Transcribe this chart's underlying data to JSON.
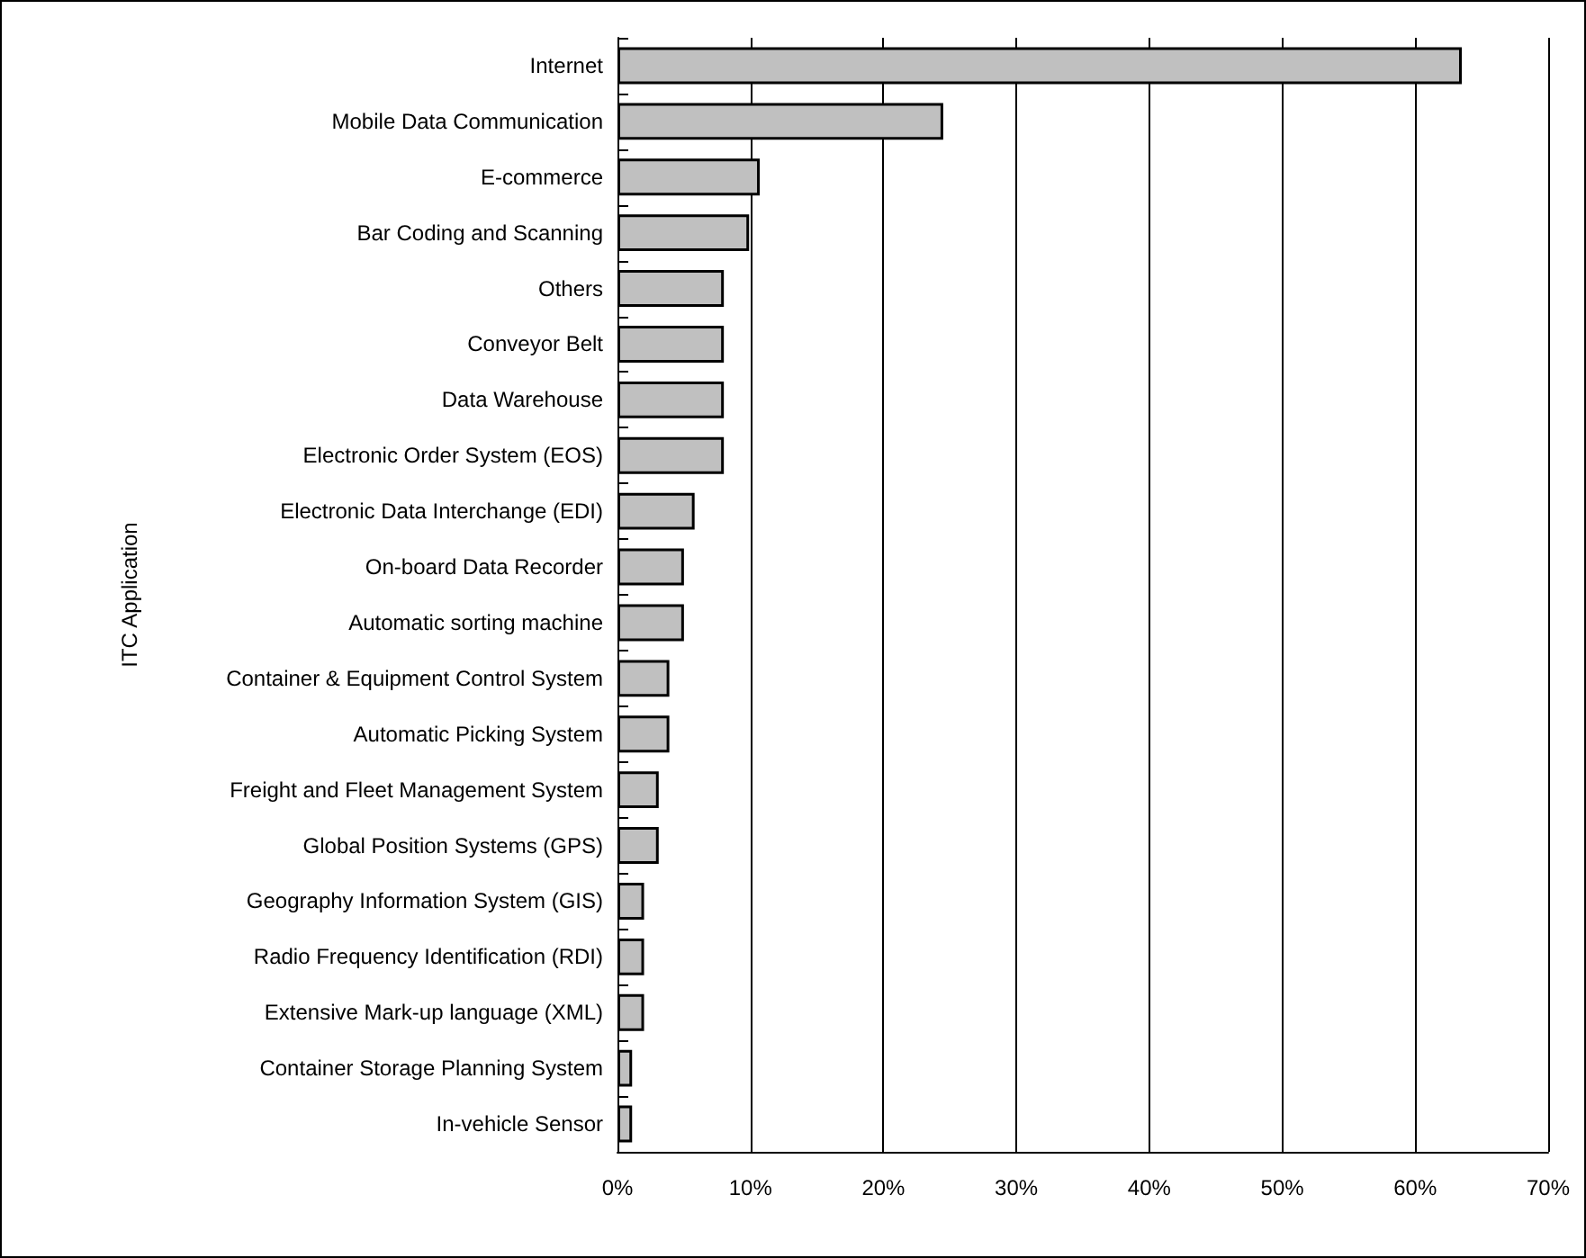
{
  "chart_data": {
    "type": "bar",
    "orientation": "horizontal",
    "ylabel": "ITC Application",
    "categories": [
      "Internet",
      "Mobile Data Communication",
      "E-commerce",
      "Bar Coding and Scanning",
      "Others",
      "Conveyor Belt",
      "Data Warehouse",
      "Electronic Order System (EOS)",
      "Electronic Data Interchange (EDI)",
      "On-board Data Recorder",
      "Automatic sorting machine",
      "Container & Equipment Control System",
      "Automatic Picking System",
      "Freight and Fleet Management System",
      "Global Position Systems (GPS)",
      "Geography Information System (GIS)",
      "Radio Frequency Identification (RDI)",
      "Extensive Mark-up language (XML)",
      "Container Storage Planning System",
      "In-vehicle Sensor"
    ],
    "values": [
      63.5,
      24.5,
      10.7,
      9.9,
      8.0,
      8.0,
      8.0,
      8.0,
      5.8,
      5.0,
      5.0,
      3.9,
      3.9,
      3.1,
      3.1,
      2.0,
      2.0,
      2.0,
      1.1,
      1.1
    ],
    "color": "#c0c0c0",
    "xlim": [
      0,
      70
    ],
    "xticks": [
      {
        "value": 0,
        "label": "0%"
      },
      {
        "value": 10,
        "label": "10%"
      },
      {
        "value": 20,
        "label": "20%"
      },
      {
        "value": 30,
        "label": "30%"
      },
      {
        "value": 40,
        "label": "40%"
      },
      {
        "value": 50,
        "label": "50%"
      },
      {
        "value": 60,
        "label": "60%"
      },
      {
        "value": 70,
        "label": "70%"
      }
    ],
    "grid": "x"
  }
}
